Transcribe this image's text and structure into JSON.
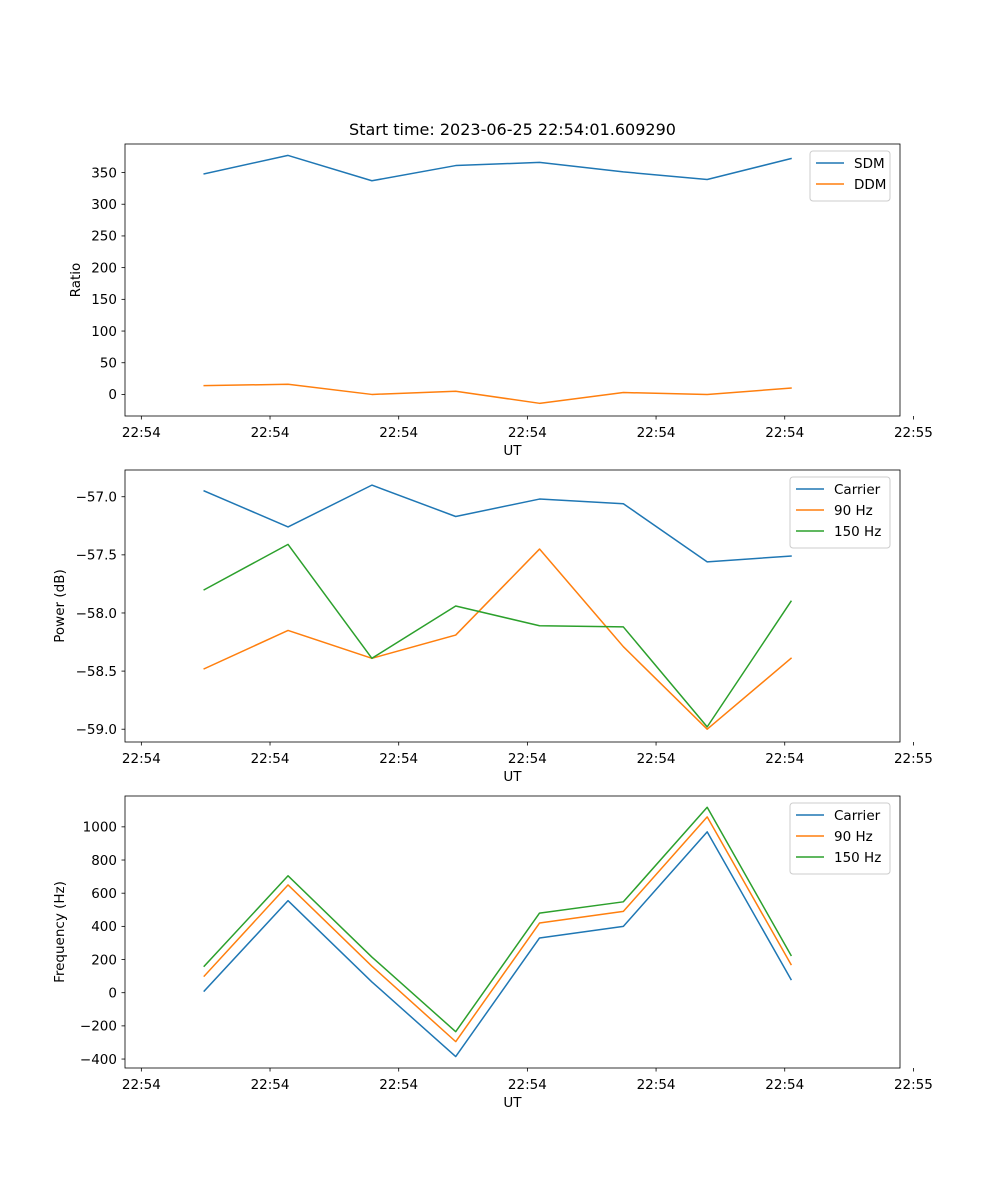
{
  "chart_data": [
    {
      "type": "line",
      "title": "Start time: 2023-06-25 22:54:01.609290",
      "xlabel": "UT",
      "ylabel": "Ratio",
      "x": [
        1,
        2,
        3,
        4,
        5,
        6,
        7,
        8
      ],
      "xticks": [
        0.25,
        1.785,
        3.32,
        4.855,
        6.39,
        7.925,
        9.46
      ],
      "xtick_labels": [
        "22:54",
        "22:54",
        "22:54",
        "22:54",
        "22:54",
        "22:54",
        "22:55"
      ],
      "xlim": [
        0.055,
        9.3
      ],
      "ylim": [
        -34,
        395
      ],
      "yticks": [
        0,
        50,
        100,
        150,
        200,
        250,
        300,
        350
      ],
      "ytick_labels": [
        "0",
        "50",
        "100",
        "150",
        "200",
        "250",
        "300",
        "350"
      ],
      "legend": "top-right",
      "grid": false,
      "series": [
        {
          "name": "SDM",
          "color": "#1f77b4",
          "values": [
            348,
            377,
            337,
            361,
            366,
            351,
            339,
            372
          ]
        },
        {
          "name": "DDM",
          "color": "#ff7f0e",
          "values": [
            14,
            16,
            0,
            5,
            -14,
            3,
            0,
            10
          ]
        }
      ]
    },
    {
      "type": "line",
      "title": "",
      "xlabel": "UT",
      "ylabel": "Power (dB)",
      "x": [
        1,
        2,
        3,
        4,
        5,
        6,
        7,
        8
      ],
      "xticks": [
        0.25,
        1.785,
        3.32,
        4.855,
        6.39,
        7.925,
        9.46
      ],
      "xtick_labels": [
        "22:54",
        "22:54",
        "22:54",
        "22:54",
        "22:54",
        "22:54",
        "22:55"
      ],
      "xlim": [
        0.055,
        9.3
      ],
      "ylim": [
        -59.11,
        -56.77
      ],
      "yticks": [
        -59.0,
        -58.5,
        -58.0,
        -57.5,
        -57.0
      ],
      "ytick_labels": [
        "−59.0",
        "−58.5",
        "−58.0",
        "−57.5",
        "−57.0"
      ],
      "legend": "top-right",
      "grid": false,
      "series": [
        {
          "name": "Carrier",
          "color": "#1f77b4",
          "values": [
            -56.95,
            -57.26,
            -56.9,
            -57.17,
            -57.02,
            -57.06,
            -57.56,
            -57.51
          ]
        },
        {
          "name": "90 Hz",
          "color": "#ff7f0e",
          "values": [
            -58.48,
            -58.15,
            -58.39,
            -58.19,
            -57.45,
            -58.29,
            -59.0,
            -58.39
          ]
        },
        {
          "name": "150 Hz",
          "color": "#2ca02c",
          "values": [
            -57.8,
            -57.41,
            -58.39,
            -57.94,
            -58.11,
            -58.12,
            -58.98,
            -57.9
          ]
        }
      ]
    },
    {
      "type": "line",
      "title": "",
      "xlabel": "UT",
      "ylabel": "Frequency (Hz)",
      "x": [
        1,
        2,
        3,
        4,
        5,
        6,
        7,
        8
      ],
      "xticks": [
        0.25,
        1.785,
        3.32,
        4.855,
        6.39,
        7.925,
        9.46
      ],
      "xtick_labels": [
        "22:54",
        "22:54",
        "22:54",
        "22:54",
        "22:54",
        "22:54",
        "22:55"
      ],
      "xlim": [
        0.055,
        9.3
      ],
      "ylim": [
        -454,
        1186
      ],
      "yticks": [
        -400,
        -200,
        0,
        200,
        400,
        600,
        800,
        1000
      ],
      "ytick_labels": [
        "−400",
        "−200",
        "0",
        "200",
        "400",
        "600",
        "800",
        "1000"
      ],
      "legend": "top-right",
      "grid": false,
      "series": [
        {
          "name": "Carrier",
          "color": "#1f77b4",
          "values": [
            10,
            555,
            65,
            -385,
            330,
            400,
            970,
            80
          ]
        },
        {
          "name": "90 Hz",
          "color": "#ff7f0e",
          "values": [
            100,
            650,
            160,
            -295,
            420,
            490,
            1060,
            170
          ]
        },
        {
          "name": "150 Hz",
          "color": "#2ca02c",
          "values": [
            160,
            705,
            215,
            -235,
            480,
            548,
            1118,
            225
          ]
        }
      ]
    }
  ]
}
